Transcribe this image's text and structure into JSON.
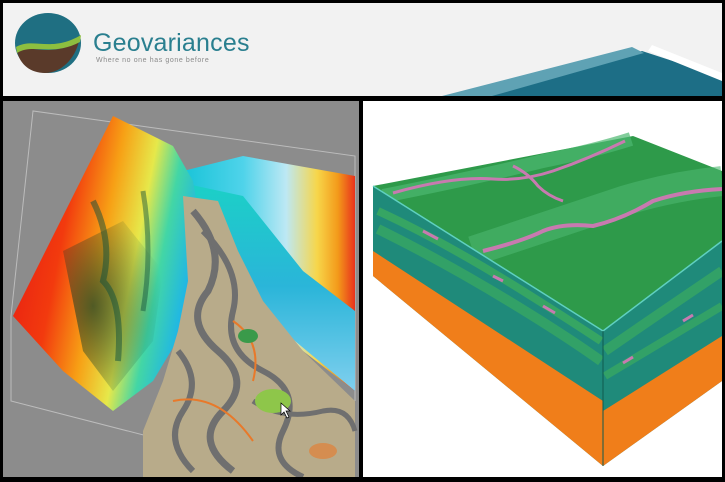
{
  "header": {
    "brand_name": "Geovariances",
    "tagline": "Where no one has gone before",
    "colors": {
      "brand_teal": "#2a7f8f",
      "logo_dark": "#1f6f82",
      "logo_green": "#8dbf3f",
      "logo_brown": "#5a3a2a",
      "swoosh": "#1d6e86"
    }
  },
  "panels": {
    "left": {
      "content": "3D surface model",
      "icon": "terrain-surface-image"
    },
    "right": {
      "content": "3D block model",
      "icon": "geologic-block-image"
    }
  }
}
